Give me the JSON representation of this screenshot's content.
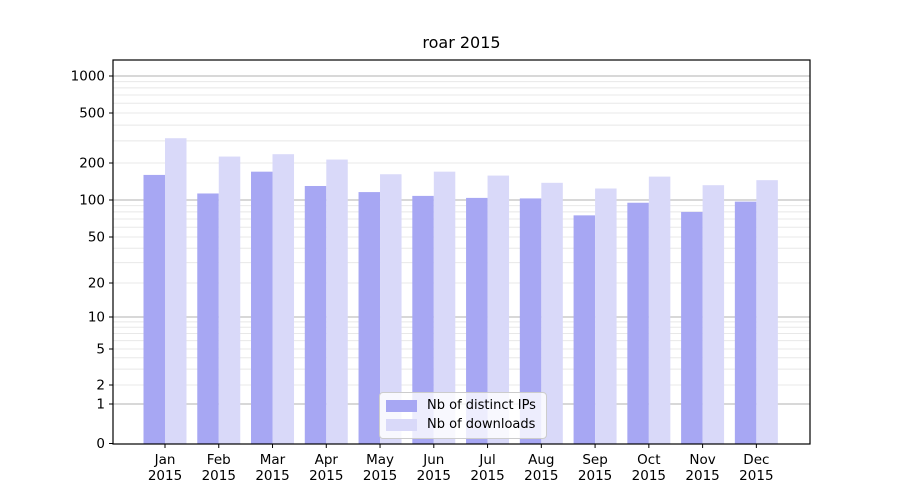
{
  "title": "roar 2015",
  "chart_data": {
    "type": "bar",
    "title": "roar 2015",
    "categories": [
      "Jan",
      "Feb",
      "Mar",
      "Apr",
      "May",
      "Jun",
      "Jul",
      "Aug",
      "Sep",
      "Oct",
      "Nov",
      "Dec"
    ],
    "category_year": "2015",
    "series": [
      {
        "name": "Nb of distinct IPs",
        "color": "#a7a7f3",
        "values": [
          160,
          113,
          170,
          130,
          116,
          108,
          104,
          103,
          75,
          95,
          80,
          97
        ]
      },
      {
        "name": "Nb of downloads",
        "color": "#d9d9f9",
        "values": [
          315,
          225,
          235,
          213,
          162,
          170,
          158,
          138,
          124,
          155,
          132,
          145
        ]
      }
    ],
    "yscale": "symlog",
    "y_ticks": [
      0,
      1,
      2,
      5,
      10,
      20,
      50,
      100,
      200,
      500,
      1000
    ],
    "ylim": [
      0,
      1400
    ],
    "xlabel": "",
    "ylabel": "",
    "grid": true,
    "legend_position": "lower center"
  },
  "legend": {
    "items": [
      {
        "label": "Nb of distinct IPs",
        "color": "#a7a7f3"
      },
      {
        "label": "Nb of downloads",
        "color": "#d9d9f9"
      }
    ]
  },
  "colors": {
    "bar_dark": "#a7a7f3",
    "bar_light": "#d9d9f9",
    "grid_major": "#b0b0b0",
    "grid_minor": "#e8e8e8",
    "spine": "#000000",
    "text": "#000000",
    "background": "#ffffff"
  }
}
